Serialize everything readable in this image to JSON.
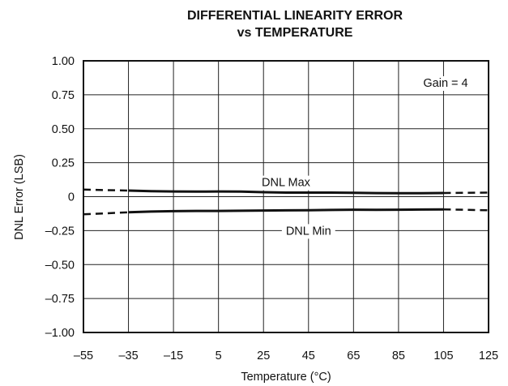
{
  "chart_data": {
    "type": "line",
    "title_line1": "DIFFERENTIAL LINEARITY ERROR",
    "title_line2": "vs TEMPERATURE",
    "xlabel": "Temperature (°C)",
    "ylabel": "DNL Error (LSB)",
    "xlim": [
      -55,
      125
    ],
    "ylim": [
      -1.0,
      1.0
    ],
    "x_ticks": [
      -55,
      -35,
      -15,
      5,
      25,
      45,
      65,
      85,
      105,
      125
    ],
    "x_tick_labels": [
      "–55",
      "–35",
      "–15",
      "5",
      "25",
      "45",
      "65",
      "85",
      "105",
      "125"
    ],
    "y_ticks": [
      1.0,
      0.75,
      0.5,
      0.25,
      0,
      -0.25,
      -0.5,
      -0.75,
      -1.0
    ],
    "y_tick_labels": [
      "1.00",
      "0.75",
      "0.50",
      "0.25",
      "0",
      "–0.25",
      "–0.50",
      "–0.75",
      "–1.00"
    ],
    "grid": true,
    "annotations": {
      "gain": "Gain = 4",
      "max_label": "DNL Max",
      "min_label": "DNL Min"
    },
    "series": [
      {
        "name": "DNL Max",
        "x": [
          -35,
          -25,
          -15,
          -5,
          5,
          15,
          25,
          35,
          45,
          55,
          65,
          75,
          85,
          95,
          105
        ],
        "values": [
          0.045,
          0.04,
          0.038,
          0.037,
          0.038,
          0.037,
          0.033,
          0.03,
          0.03,
          0.03,
          0.028,
          0.026,
          0.025,
          0.025,
          0.027
        ],
        "dashed_before": {
          "x": [
            -55,
            -35
          ],
          "values": [
            0.052,
            0.045
          ]
        },
        "dashed_after": {
          "x": [
            105,
            125
          ],
          "values": [
            0.027,
            0.03
          ]
        }
      },
      {
        "name": "DNL Min",
        "x": [
          -35,
          -25,
          -15,
          -5,
          5,
          15,
          25,
          35,
          45,
          55,
          65,
          75,
          85,
          95,
          105
        ],
        "values": [
          -0.115,
          -0.11,
          -0.107,
          -0.105,
          -0.105,
          -0.104,
          -0.102,
          -0.101,
          -0.1,
          -0.098,
          -0.096,
          -0.097,
          -0.096,
          -0.095,
          -0.094
        ],
        "dashed_before": {
          "x": [
            -55,
            -35
          ],
          "values": [
            -0.13,
            -0.115
          ]
        },
        "dashed_after": {
          "x": [
            105,
            125
          ],
          "values": [
            -0.094,
            -0.1
          ]
        }
      }
    ]
  }
}
